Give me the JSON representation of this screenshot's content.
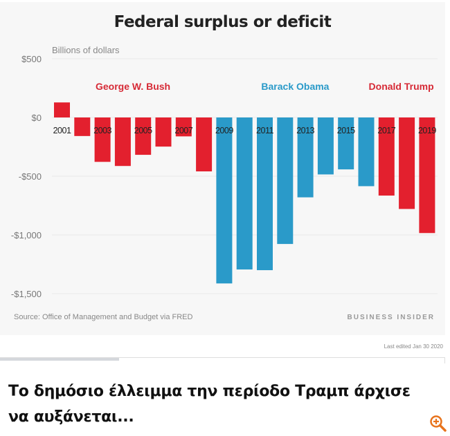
{
  "chart_data": {
    "type": "bar",
    "title": "Federal surplus or deficit",
    "ylabel": "Billions of dollars",
    "ylim": [
      -1500,
      500
    ],
    "yticks": [
      500,
      0,
      -500,
      -1000,
      -1500
    ],
    "ytick_labels": [
      "$500",
      "$0",
      "-$500",
      "-$1,000",
      "-$1,500"
    ],
    "grid": true,
    "categories": [
      "2001",
      "2002",
      "2003",
      "2004",
      "2005",
      "2006",
      "2007",
      "2008",
      "2009",
      "2010",
      "2011",
      "2012",
      "2013",
      "2014",
      "2015",
      "2016",
      "2017",
      "2018",
      "2019"
    ],
    "xtick_labels_shown": [
      "2001",
      "2003",
      "2005",
      "2007",
      "2009",
      "2011",
      "2013",
      "2015",
      "2017",
      "2019"
    ],
    "values": [
      128,
      -158,
      -378,
      -413,
      -318,
      -248,
      -161,
      -459,
      -1413,
      -1294,
      -1300,
      -1077,
      -680,
      -485,
      -442,
      -585,
      -665,
      -779,
      -984
    ],
    "annotations": [
      {
        "text": "George W. Bush",
        "color": "#d62a36",
        "years": [
          "2001",
          "2008"
        ]
      },
      {
        "text": "Barack Obama",
        "color": "#2a9ac9",
        "years": [
          "2009",
          "2016"
        ]
      },
      {
        "text": "Donald Trump",
        "color": "#d62a36",
        "years": [
          "2017",
          "2019"
        ]
      }
    ],
    "colors": {
      "republican": "#e3202e",
      "democrat": "#2a9ac9"
    },
    "source": "Source: Office of Management and Budget via FRED",
    "brand": "BUSINESS INSIDER"
  },
  "last_edited": "Last edited Jan 30 2020",
  "headline": "Το δημόσιο έλλειμμα την περίοδο Τραμπ άρχισε να αυξάνεται...",
  "zoom_icon": "zoom-in-icon",
  "accent": "#e8731c"
}
